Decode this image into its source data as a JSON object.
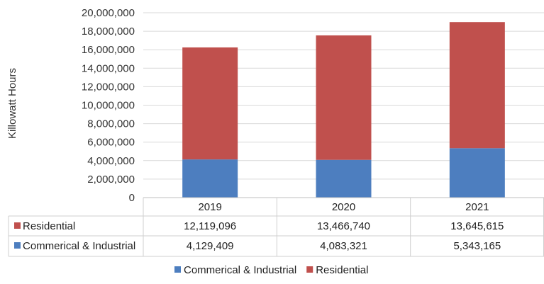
{
  "chart_data": {
    "type": "bar",
    "stacked": true,
    "categories": [
      "2019",
      "2020",
      "2021"
    ],
    "series": [
      {
        "name": "Commerical & Industrial",
        "values": [
          4129409,
          4083321,
          5343165
        ],
        "color": "#4d7ebf"
      },
      {
        "name": "Residential",
        "values": [
          12119096,
          13466740,
          13645615
        ],
        "color": "#c0504d"
      }
    ],
    "data_table": {
      "rows": [
        {
          "label": "Residential",
          "values": [
            "12,119,096",
            "13,466,740",
            "13,645,615"
          ],
          "color": "#c0504d"
        },
        {
          "label": "Commerical & Industrial",
          "values": [
            "4,129,409",
            "4,083,321",
            "5,343,165"
          ],
          "color": "#4d7ebf"
        }
      ]
    },
    "ylabel": "Killowatt Hours",
    "ylim": [
      0,
      20000000
    ],
    "yticks": [
      "0",
      "2,000,000",
      "4,000,000",
      "6,000,000",
      "8,000,000",
      "10,000,000",
      "12,000,000",
      "14,000,000",
      "16,000,000",
      "18,000,000",
      "20,000,000"
    ],
    "grid": true,
    "legend_position": "bottom-center",
    "legend": [
      "Commerical & Industrial",
      "Residential"
    ]
  }
}
